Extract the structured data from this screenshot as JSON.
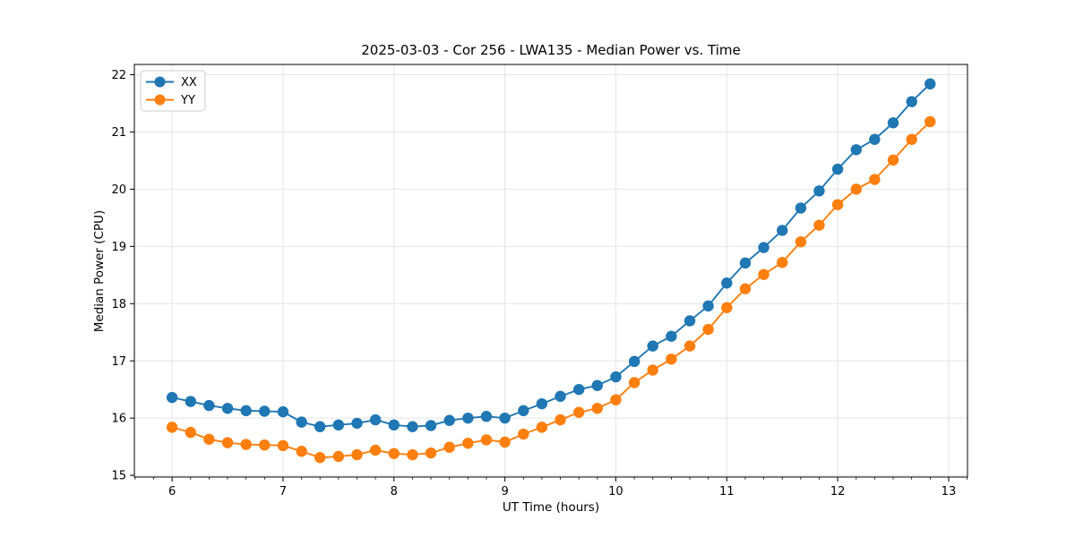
{
  "chart_data": {
    "type": "line",
    "title": "2025-03-03 - Cor 256 - LWA135 - Median Power vs. Time",
    "xlabel": "UT Time (hours)",
    "ylabel": "Median Power (CPU)",
    "xlim": [
      5.66,
      13.17
    ],
    "ylim": [
      14.97,
      22.18
    ],
    "x_major_ticks": [
      6,
      7,
      8,
      9,
      10,
      11,
      12,
      13
    ],
    "y_major_ticks": [
      15,
      16,
      17,
      18,
      19,
      20,
      21,
      22
    ],
    "x_minor_tick_step": 0.166667,
    "grid": "major",
    "grid_color": "#e4e4e4",
    "legend_position": "upper-left",
    "x": [
      6.0,
      6.167,
      6.333,
      6.5,
      6.667,
      6.833,
      7.0,
      7.167,
      7.333,
      7.5,
      7.667,
      7.833,
      8.0,
      8.167,
      8.333,
      8.5,
      8.667,
      8.833,
      9.0,
      9.167,
      9.333,
      9.5,
      9.667,
      9.833,
      10.0,
      10.167,
      10.333,
      10.5,
      10.667,
      10.833,
      11.0,
      11.167,
      11.333,
      11.5,
      11.667,
      11.833,
      12.0,
      12.167,
      12.333,
      12.5,
      12.667,
      12.833
    ],
    "series": [
      {
        "name": "XX",
        "color": "#1f77b4",
        "values": [
          16.36,
          16.29,
          16.22,
          16.17,
          16.13,
          16.12,
          16.11,
          15.93,
          15.85,
          15.88,
          15.91,
          15.97,
          15.88,
          15.85,
          15.87,
          15.96,
          16.0,
          16.03,
          16.0,
          16.13,
          16.25,
          16.38,
          16.5,
          16.57,
          16.72,
          16.99,
          17.26,
          17.43,
          17.7,
          17.96,
          18.36,
          18.71,
          18.98,
          19.28,
          19.67,
          19.97,
          20.35,
          20.69,
          20.87,
          21.16,
          21.53,
          21.84
        ]
      },
      {
        "name": "YY",
        "color": "#ff7f0e",
        "values": [
          15.84,
          15.75,
          15.63,
          15.57,
          15.54,
          15.53,
          15.52,
          15.42,
          15.31,
          15.33,
          15.36,
          15.44,
          15.38,
          15.36,
          15.39,
          15.49,
          15.56,
          15.62,
          15.58,
          15.72,
          15.84,
          15.97,
          16.1,
          16.17,
          16.32,
          16.62,
          16.84,
          17.03,
          17.26,
          17.55,
          17.93,
          18.26,
          18.51,
          18.72,
          19.08,
          19.37,
          19.73,
          20.0,
          20.17,
          20.51,
          20.87,
          21.18
        ]
      }
    ]
  }
}
